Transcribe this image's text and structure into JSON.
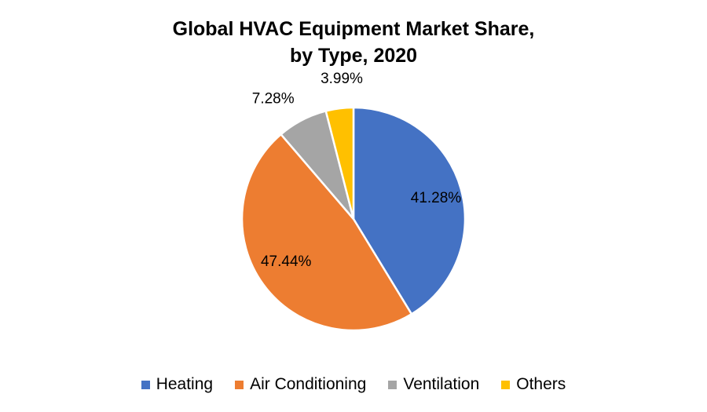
{
  "chart_data": {
    "type": "pie",
    "title_line1": "Global HVAC Equipment Market Share,",
    "title_line2": "by Type, 2020",
    "categories": [
      "Heating",
      "Air Conditioning",
      "Ventilation",
      "Others"
    ],
    "values": [
      41.28,
      47.44,
      7.28,
      3.99
    ],
    "labels": [
      "41.28%",
      "47.44%",
      "7.28%",
      "3.99%"
    ],
    "colors": [
      "#4472C4",
      "#ED7D31",
      "#A5A5A5",
      "#FFC000"
    ],
    "legend_position": "bottom",
    "start_angle": "12 o'clock",
    "direction": "clockwise"
  }
}
